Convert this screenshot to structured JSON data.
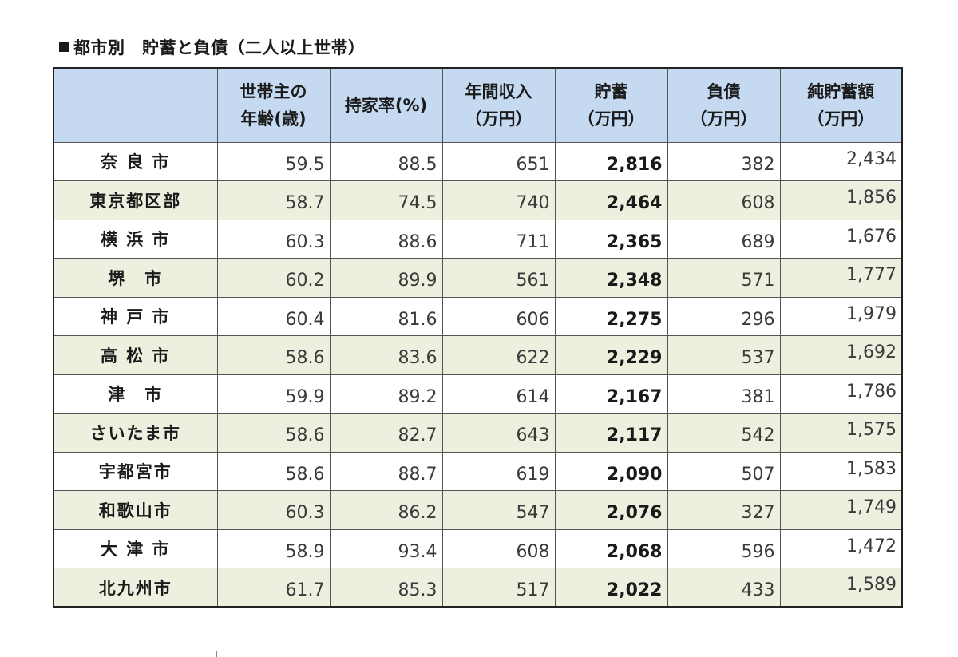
{
  "title": "都市別　貯蓄と負債（二人以上世帯）",
  "table": {
    "headers": [
      {
        "line1": "",
        "line2": ""
      },
      {
        "line1": "世帯主の",
        "line2": "年齢(歳)"
      },
      {
        "line1": "持家率(%)",
        "line2": ""
      },
      {
        "line1": "年間収入",
        "line2": "（万円）"
      },
      {
        "line1": "貯蓄",
        "line2": "（万円）"
      },
      {
        "line1": "負債",
        "line2": "（万円）"
      },
      {
        "line1": "純貯蓄額",
        "line2": "（万円）"
      }
    ],
    "rows": [
      {
        "city": "奈 良 市",
        "age": "59.5",
        "home": "88.5",
        "income": "651",
        "savings": "2,816",
        "debt": "382",
        "net": "2,434"
      },
      {
        "city": "東京都区部",
        "age": "58.7",
        "home": "74.5",
        "income": "740",
        "savings": "2,464",
        "debt": "608",
        "net": "1,856"
      },
      {
        "city": "横 浜 市",
        "age": "60.3",
        "home": "88.6",
        "income": "711",
        "savings": "2,365",
        "debt": "689",
        "net": "1,676"
      },
      {
        "city": "堺　市",
        "age": "60.2",
        "home": "89.9",
        "income": "561",
        "savings": "2,348",
        "debt": "571",
        "net": "1,777"
      },
      {
        "city": "神 戸 市",
        "age": "60.4",
        "home": "81.6",
        "income": "606",
        "savings": "2,275",
        "debt": "296",
        "net": "1,979"
      },
      {
        "city": "高 松 市",
        "age": "58.6",
        "home": "83.6",
        "income": "622",
        "savings": "2,229",
        "debt": "537",
        "net": "1,692"
      },
      {
        "city": "津　市",
        "age": "59.9",
        "home": "89.2",
        "income": "614",
        "savings": "2,167",
        "debt": "381",
        "net": "1,786"
      },
      {
        "city": "さいたま市",
        "age": "58.6",
        "home": "82.7",
        "income": "643",
        "savings": "2,117",
        "debt": "542",
        "net": "1,575"
      },
      {
        "city": "宇都宮市",
        "age": "58.6",
        "home": "88.7",
        "income": "619",
        "savings": "2,090",
        "debt": "507",
        "net": "1,583"
      },
      {
        "city": "和歌山市",
        "age": "60.3",
        "home": "86.2",
        "income": "547",
        "savings": "2,076",
        "debt": "327",
        "net": "1,749"
      },
      {
        "city": "大 津 市",
        "age": "58.9",
        "home": "93.4",
        "income": "608",
        "savings": "2,068",
        "debt": "596",
        "net": "1,472"
      },
      {
        "city": "北九州市",
        "age": "61.7",
        "home": "85.3",
        "income": "517",
        "savings": "2,022",
        "debt": "433",
        "net": "1,589"
      }
    ]
  },
  "colors": {
    "header_bg": "#c5d9f1",
    "row_alt_bg": "#ebf1de",
    "row_bg": "#ffffff"
  }
}
